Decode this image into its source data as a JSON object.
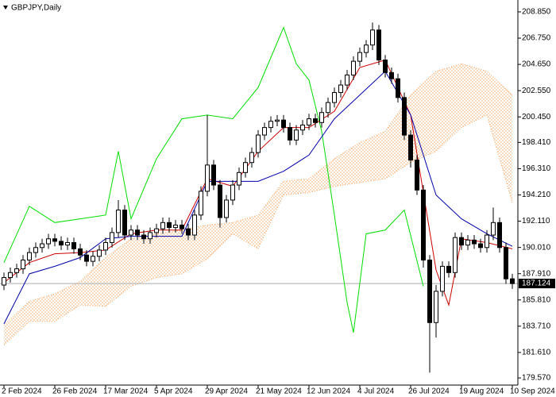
{
  "chart_data": {
    "type": "candlestick",
    "title": "GBPJPY,Daily",
    "categories": [
      "2 Feb 2024",
      null,
      null,
      null,
      null,
      null,
      null,
      null,
      "26 Feb 2024",
      null,
      null,
      null,
      null,
      null,
      null,
      null,
      "17 Mar 2024",
      null,
      null,
      null,
      null,
      null,
      null,
      null,
      "5 Apr 2024",
      null,
      null,
      null,
      null,
      null,
      null,
      null,
      "29 Apr 2024",
      null,
      null,
      null,
      null,
      null,
      null,
      null,
      "21 May 2024",
      null,
      null,
      null,
      null,
      null,
      null,
      null,
      "12 Jun 2024",
      null,
      null,
      null,
      null,
      null,
      null,
      null,
      "4 Jul 2024",
      null,
      null,
      null,
      null,
      null,
      null,
      null,
      "26 Jul 2024",
      null,
      null,
      null,
      null,
      null,
      null,
      null,
      "19 Aug 2024",
      null,
      null,
      null,
      null,
      null,
      null,
      null,
      "10 Sep 2024"
    ],
    "open": [
      187.0,
      187.6,
      188.0,
      188.3,
      189.0,
      189.6,
      190.0,
      190.3,
      190.7,
      190.5,
      190.2,
      190.4,
      189.9,
      189.4,
      188.9,
      189.3,
      189.8,
      190.4,
      191.2,
      193.0,
      191.0,
      191.4,
      191.0,
      190.7,
      191.2,
      191.5,
      192.0,
      191.6,
      191.8,
      191.5,
      191.0,
      192.6,
      194.5,
      196.6,
      195.0,
      192.4,
      193.8,
      195.0,
      196.0,
      196.8,
      197.6,
      199.0,
      199.6,
      200.1,
      200.2,
      199.6,
      198.6,
      199.4,
      199.8,
      200.3,
      200.0,
      200.8,
      201.6,
      202.4,
      203.0,
      203.8,
      204.9,
      205.6,
      206.2,
      207.4,
      205.0,
      204.0,
      203.5,
      202.0,
      199.0,
      197.0,
      194.6,
      189.0,
      184.0,
      186.5,
      188.5,
      188.0,
      190.8,
      190.2,
      190.6,
      190.3,
      190.0,
      191.0,
      192.0,
      190.0,
      187.5
    ],
    "high": [
      188.0,
      188.4,
      188.7,
      189.4,
      190.0,
      190.4,
      190.7,
      191.1,
      191.1,
      190.9,
      190.8,
      190.8,
      190.3,
      189.8,
      189.7,
      190.2,
      190.8,
      191.6,
      193.8,
      193.4,
      191.8,
      191.8,
      191.4,
      191.6,
      191.9,
      192.4,
      192.4,
      192.2,
      192.2,
      191.9,
      193.0,
      194.9,
      200.6,
      197.0,
      195.4,
      194.2,
      195.4,
      196.4,
      197.2,
      198.0,
      199.4,
      200.0,
      200.5,
      200.6,
      200.6,
      200.0,
      199.8,
      200.2,
      200.7,
      200.7,
      201.2,
      202.0,
      202.8,
      203.4,
      204.2,
      205.3,
      206.0,
      206.6,
      208.0,
      207.8,
      205.4,
      204.4,
      203.9,
      202.4,
      199.4,
      197.4,
      195.0,
      189.4,
      187.0,
      188.9,
      188.9,
      191.2,
      191.2,
      191.0,
      191.0,
      190.7,
      191.4,
      193.2,
      192.4,
      190.4,
      187.9
    ],
    "low": [
      186.6,
      187.2,
      187.6,
      187.9,
      188.6,
      189.2,
      189.6,
      189.9,
      190.1,
      189.8,
      189.8,
      189.5,
      189.0,
      188.5,
      188.5,
      188.9,
      189.4,
      190.0,
      190.8,
      190.6,
      190.6,
      190.6,
      190.3,
      190.3,
      190.8,
      191.1,
      191.2,
      191.2,
      191.1,
      190.6,
      190.6,
      192.2,
      194.1,
      194.6,
      191.6,
      192.0,
      193.4,
      194.6,
      195.6,
      196.4,
      197.2,
      198.6,
      199.2,
      199.7,
      199.2,
      198.2,
      198.2,
      199.0,
      199.4,
      199.6,
      199.6,
      200.4,
      201.2,
      202.0,
      202.6,
      203.4,
      204.5,
      205.2,
      205.8,
      204.6,
      203.6,
      203.1,
      201.6,
      198.6,
      196.4,
      194.2,
      188.4,
      180.0,
      182.8,
      186.1,
      187.6,
      187.6,
      189.8,
      189.8,
      189.9,
      189.6,
      189.6,
      190.6,
      189.6,
      187.1,
      186.7
    ],
    "close": [
      187.6,
      188.0,
      188.3,
      189.0,
      189.6,
      190.0,
      190.3,
      190.7,
      190.5,
      190.2,
      190.4,
      189.9,
      189.4,
      188.9,
      189.3,
      189.8,
      190.4,
      191.2,
      193.0,
      191.0,
      191.4,
      191.0,
      190.7,
      191.2,
      191.5,
      192.0,
      191.6,
      191.8,
      191.5,
      191.0,
      192.6,
      194.5,
      196.6,
      195.0,
      192.4,
      193.8,
      195.0,
      196.0,
      196.8,
      197.6,
      199.0,
      199.6,
      200.1,
      200.2,
      199.6,
      198.6,
      199.4,
      199.8,
      200.3,
      200.0,
      200.8,
      201.6,
      202.4,
      203.0,
      203.8,
      204.9,
      205.6,
      206.2,
      207.4,
      205.0,
      204.0,
      203.5,
      202.0,
      199.0,
      197.0,
      194.6,
      189.0,
      184.0,
      186.5,
      188.5,
      188.0,
      190.8,
      190.2,
      190.6,
      190.3,
      190.0,
      191.0,
      192.0,
      190.0,
      187.5,
      187.12
    ],
    "up_color": "#ffffff",
    "down_color": "#000000",
    "ylim": [
      179.0,
      209.8
    ],
    "yticks": [
      {
        "value": 208.85,
        "label": "208.850"
      },
      {
        "value": 206.75,
        "label": "206.750"
      },
      {
        "value": 204.65,
        "label": "204.650"
      },
      {
        "value": 202.55,
        "label": "202.550"
      },
      {
        "value": 200.45,
        "label": "200.450"
      },
      {
        "value": 198.41,
        "label": "198.410"
      },
      {
        "value": 196.31,
        "label": "196.310"
      },
      {
        "value": 194.21,
        "label": "194.210"
      },
      {
        "value": 192.11,
        "label": "192.110"
      },
      {
        "value": 190.01,
        "label": "190.010"
      },
      {
        "value": 187.91,
        "label": "187.910"
      },
      {
        "value": 185.81,
        "label": "185.810"
      },
      {
        "value": 183.71,
        "label": "183.710"
      },
      {
        "value": 181.61,
        "label": "181.610"
      },
      {
        "value": 179.57,
        "label": "179.570"
      }
    ],
    "last_price": 187.124,
    "lines": [
      {
        "color": "#00dd00",
        "x": [
          0,
          4,
          8,
          12,
          16,
          18,
          20,
          24,
          28,
          32,
          36,
          40,
          44,
          46,
          48,
          50,
          52,
          54,
          55,
          57,
          60,
          63,
          66
        ],
        "values": [
          188.8,
          193.3,
          192.0,
          192.3,
          192.6,
          197.7,
          192.3,
          197.1,
          200.3,
          200.6,
          200.3,
          202.8,
          207.6,
          204.7,
          203.4,
          199.3,
          192.6,
          185.6,
          183.2,
          191.1,
          191.4,
          193.0,
          186.9
        ]
      },
      {
        "color": "#cc0000",
        "x": [
          0,
          4,
          8,
          12,
          16,
          20,
          24,
          28,
          32,
          36,
          40,
          44,
          48,
          52,
          56,
          60,
          64,
          68,
          70,
          72,
          76,
          80
        ],
        "values": [
          187.2,
          188.8,
          189.5,
          189.6,
          189.8,
          191.1,
          191.4,
          191.4,
          195.5,
          194.9,
          197.7,
          199.6,
          199.6,
          200.9,
          204.4,
          205.0,
          200.6,
          188.2,
          185.4,
          190.7,
          190.4,
          189.9
        ]
      },
      {
        "color": "#0000aa",
        "x": [
          0,
          4,
          8,
          12,
          16,
          20,
          24,
          28,
          32,
          36,
          40,
          44,
          48,
          52,
          56,
          60,
          64,
          68,
          72,
          76,
          80
        ],
        "values": [
          183.9,
          187.9,
          188.5,
          189.2,
          190.7,
          190.9,
          190.9,
          190.9,
          195.3,
          195.3,
          195.3,
          196.1,
          197.4,
          200.3,
          202.2,
          204.1,
          200.6,
          194.2,
          192.3,
          191.1,
          190.1
        ]
      }
    ],
    "cloud": {
      "color": "#f4a460",
      "x": [
        0,
        4,
        8,
        12,
        16,
        20,
        24,
        28,
        32,
        36,
        40,
        44,
        48,
        52,
        56,
        60,
        64,
        68,
        72,
        76,
        80
      ],
      "span_a": [
        183.8,
        185.7,
        186.3,
        187.3,
        189.2,
        190.7,
        191.1,
        191.4,
        191.8,
        192.0,
        192.6,
        195.3,
        195.5,
        197.1,
        198.4,
        199.3,
        202.2,
        204.1,
        204.7,
        204.1,
        202.2
      ],
      "span_b": [
        182.2,
        184.1,
        184.1,
        185.4,
        185.3,
        186.9,
        187.6,
        187.9,
        189.1,
        191.1,
        189.9,
        194.2,
        194.4,
        194.9,
        195.2,
        195.5,
        196.8,
        197.7,
        199.6,
        200.6,
        193.6
      ]
    }
  }
}
